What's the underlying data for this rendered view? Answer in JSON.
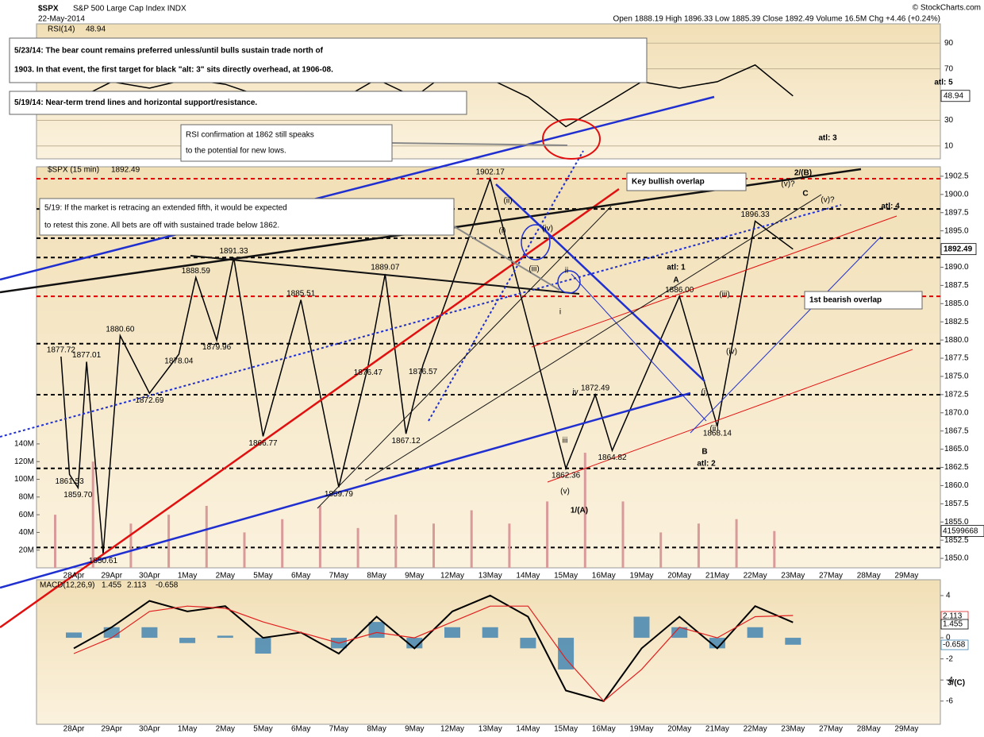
{
  "header": {
    "symbol": "$SPX",
    "name": "S&P 500 Large Cap Index INDX",
    "date": "22-May-2014",
    "quote": "Open 1888.19   High 1896.33   Low 1885.39   Close 1892.49   Volume 16.5M   Chg +4.46 (+0.24%)",
    "credit": "© StockCharts.com"
  },
  "notes": [
    {
      "lines": [
        "5/23/14:  The bear count remains preferred unless/until bulls sustain trade north of",
        "1903.  In that event, the first target for black \"alt: 3\" sits directly overhead, at 1906-08."
      ]
    },
    {
      "lines": [
        "5/19/14:  Near-term trend lines and horizontal support/resistance."
      ]
    },
    {
      "lines": [
        "RSI confirmation at 1862 still speaks",
        "to the potential for new lows."
      ]
    },
    {
      "lines": [
        "5/19: If the market is retracing an extended fifth, it would be expected",
        "to retest this zone.  All bets are off with sustained trade below 1862."
      ]
    },
    {
      "lines": [
        "Key bullish overlap"
      ]
    },
    {
      "lines": [
        "1st bearish overlap"
      ]
    }
  ],
  "wave_labels": [
    "2/(B)",
    "C",
    "(v)?",
    "(v)?",
    "atl: 4",
    "atl: 5",
    "atl: 3",
    "atl: 1",
    "A",
    "(iii)",
    "(iv)",
    "(i)",
    "(ii)",
    "B",
    "atl: 2",
    "1/(A)",
    "(v)",
    "(ii)",
    "(i)",
    "(iv)",
    "(iii)",
    "iii",
    "iv",
    "ii",
    "i",
    "3/(C)"
  ],
  "chart_data": [
    {
      "type": "line",
      "title": "RSI(14)",
      "categories": [
        "28Apr",
        "29Apr",
        "30Apr",
        "1May",
        "2May",
        "5May",
        "6May",
        "7May",
        "8May",
        "9May",
        "12May",
        "13May",
        "14May",
        "15May",
        "16May",
        "19May",
        "20May",
        "21May",
        "22May",
        "23May",
        "27May",
        "28May",
        "29May"
      ],
      "series": [
        {
          "name": "RSI(14)",
          "color": "#000000",
          "values": [
            45,
            60,
            55,
            62,
            58,
            48,
            52,
            45,
            62,
            48,
            70,
            62,
            48,
            25,
            42,
            60,
            55,
            60,
            73,
            48.94,
            null,
            null,
            null
          ]
        }
      ],
      "ylim": [
        0,
        105
      ],
      "yticks": [
        10,
        30,
        70,
        90
      ]
    },
    {
      "type": "line",
      "title": "$SPX (15 min)",
      "categories": [
        "28Apr",
        "29Apr",
        "30Apr",
        "1May",
        "2May",
        "5May",
        "6May",
        "7May",
        "8May",
        "9May",
        "12May",
        "13May",
        "14May",
        "15May",
        "16May",
        "19May",
        "20May",
        "21May",
        "22May",
        "23May",
        "27May",
        "28May",
        "29May"
      ],
      "price": {
        "name": "$SPX",
        "color": "#000000",
        "x": [
          "28Apr",
          "28Apr",
          "28Apr",
          "28Apr",
          "29Apr",
          "29Apr",
          "30Apr",
          "1May",
          "1May",
          "2May",
          "2May",
          "5May",
          "6May",
          "7May",
          "8May",
          "8May",
          "9May",
          "9May",
          "13May",
          "15May",
          "16May",
          "16May",
          "20May",
          "21May",
          "22May",
          "23May"
        ],
        "values": [
          1877.72,
          1861.53,
          1859.7,
          1877.01,
          1850.61,
          1880.6,
          1872.69,
          1878.04,
          1888.59,
          1879.96,
          1891.33,
          1866.77,
          1885.51,
          1859.79,
          1876.47,
          1889.07,
          1867.12,
          1876.57,
          1902.17,
          1862.36,
          1872.49,
          1864.82,
          1886.0,
          1868.14,
          1896.33,
          1892.49
        ],
        "value_labels": [
          "1877.72",
          "1861.53",
          "1859.70",
          "1877.01",
          "1850.61",
          "1880.60",
          "1872.69",
          "1878.04",
          "1888.59",
          "1879.96",
          "1891.33",
          "1866.77",
          "1885.51",
          "1859.79",
          "1876.47",
          "1889.07",
          "1867.12",
          "1876.57",
          "1902.17",
          "1862.36",
          "1872.49",
          "1864.82",
          "1886.00",
          "1868.14",
          "1896.33",
          "1892.49"
        ]
      },
      "series": [
        {
          "name": "Volume",
          "axis": "y2",
          "color": "#d99a9a",
          "values": [
            60000000,
            120000000,
            50000000,
            60000000,
            70000000,
            40000000,
            55000000,
            70000000,
            45000000,
            60000000,
            50000000,
            65000000,
            50000000,
            75000000,
            130000000,
            75000000,
            40000000,
            50000000,
            55000000,
            41599668,
            null,
            null,
            null
          ]
        }
      ],
      "levels": [
        {
          "value": 1902.17,
          "color": "#e00000"
        },
        {
          "value": 1898,
          "color": "#000000"
        },
        {
          "value": 1894,
          "color": "#000000"
        },
        {
          "value": 1891.33,
          "color": "#000000"
        },
        {
          "value": 1886.0,
          "color": "#e00000"
        },
        {
          "value": 1879.5,
          "color": "#000000"
        },
        {
          "value": 1872.49,
          "color": "#000000"
        },
        {
          "value": 1862.36,
          "color": "#000000"
        },
        {
          "value": 1851.5,
          "color": "#000000"
        }
      ],
      "ylim": [
        1848.7,
        1903.8
      ],
      "yticks": [
        {
          "value": 1850,
          "label": "1850.0"
        },
        1852.5,
        {
          "value": 1855,
          "label": "1855.0"
        },
        1857.5,
        {
          "value": 1860,
          "label": "1860.0"
        },
        1862.5,
        {
          "value": 1865,
          "label": "1865.0"
        },
        1867.5,
        {
          "value": 1870,
          "label": "1870.0"
        },
        1872.5,
        {
          "value": 1875,
          "label": "1875.0"
        },
        1877.5,
        {
          "value": 1880,
          "label": "1880.0"
        },
        1882.5,
        {
          "value": 1885,
          "label": "1885.0"
        },
        1887.5,
        {
          "value": 1890,
          "label": "1890.0"
        },
        1892.5,
        {
          "value": 1895,
          "label": "1895.0"
        },
        1897.5,
        {
          "value": 1900,
          "label": "1900.0"
        },
        1902.5
      ],
      "y2lim": [
        0,
        453000000
      ],
      "y2ticks": [
        {
          "value": 20000000,
          "label": "20M"
        },
        {
          "value": 40000000,
          "label": "40M"
        },
        {
          "value": 60000000,
          "label": "60M"
        },
        {
          "value": 80000000,
          "label": "80M"
        },
        {
          "value": 100000000,
          "label": "100M"
        },
        {
          "value": 120000000,
          "label": "120M"
        },
        {
          "value": 140000000,
          "label": "140M"
        }
      ]
    },
    {
      "type": "line",
      "title": "MACD(12,26,9)",
      "categories": [
        "28Apr",
        "29Apr",
        "30Apr",
        "1May",
        "2May",
        "5May",
        "6May",
        "7May",
        "8May",
        "9May",
        "12May",
        "13May",
        "14May",
        "15May",
        "16May",
        "19May",
        "20May",
        "21May",
        "22May",
        "23May",
        "27May",
        "28May",
        "29May"
      ],
      "series": [
        {
          "name": "MACD",
          "color": "#000000",
          "values": [
            -1,
            1,
            3.5,
            2.5,
            3,
            0,
            0.5,
            -1.5,
            2,
            -1,
            2.5,
            4,
            2,
            -5,
            -6,
            -1,
            2,
            -1,
            3,
            1.455,
            null,
            null,
            null
          ]
        },
        {
          "name": "Signal",
          "color": "#e02020",
          "values": [
            -1.5,
            0,
            2.5,
            3,
            2.8,
            1.5,
            0.5,
            -0.5,
            0.5,
            0,
            1.5,
            3,
            3,
            -2,
            -6,
            -3,
            1,
            0,
            2,
            2.113,
            null,
            null,
            null
          ]
        },
        {
          "name": "Histogram",
          "color": "#3a7fb0",
          "values": [
            0.5,
            1,
            1,
            -0.5,
            0.2,
            -1.5,
            0,
            -1,
            1.5,
            -1,
            1,
            1,
            -1,
            -3,
            0,
            2,
            1,
            -1,
            1,
            -0.658,
            null,
            null,
            null
          ]
        }
      ],
      "ylim": [
        -8.2,
        5.5
      ],
      "yticks": [
        4,
        0,
        -2,
        -4,
        -6
      ]
    }
  ]
}
